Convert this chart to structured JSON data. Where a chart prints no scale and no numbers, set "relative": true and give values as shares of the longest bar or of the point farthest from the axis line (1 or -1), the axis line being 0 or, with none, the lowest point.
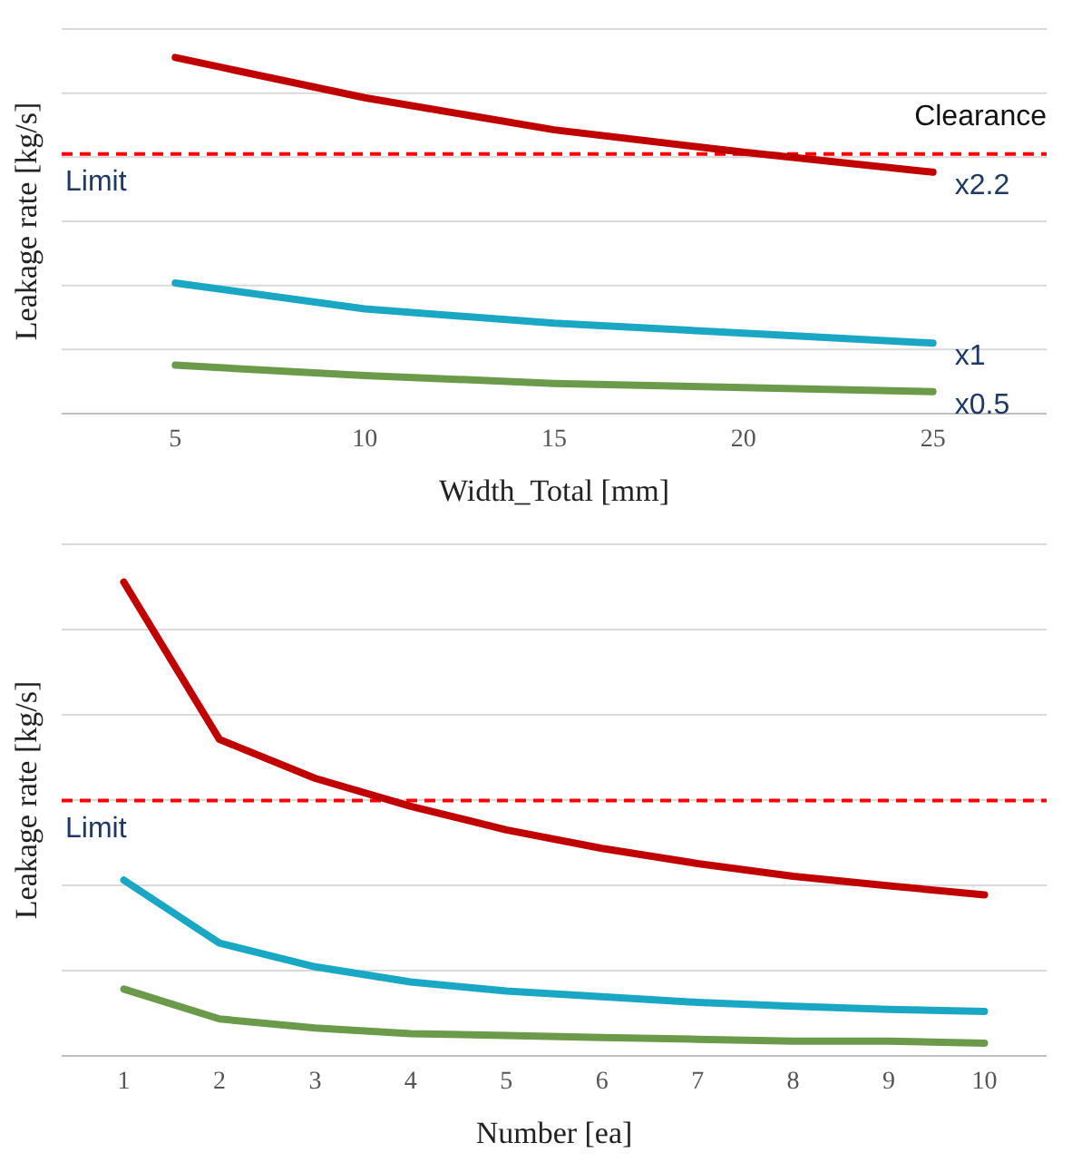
{
  "chart_data": [
    {
      "type": "line",
      "relative": true,
      "xlabel": "Width_Total [mm]",
      "ylabel": "Leakage rate [kg/s]",
      "x": [
        5,
        10,
        15,
        20,
        25
      ],
      "xlim": [
        2,
        28
      ],
      "xticks": [
        5,
        10,
        15,
        20,
        25
      ],
      "grid": "y",
      "marker": "none",
      "line_style": "solid",
      "tick_labels": "x",
      "series": [
        {
          "name": "x2.2",
          "color": "#c00000",
          "values": [
            1,
            0.887,
            0.797,
            0.734,
            0.678
          ]
        },
        {
          "name": "x1",
          "color": "#1aa7c4",
          "values": [
            0.367,
            0.294,
            0.254,
            0.226,
            0.198
          ]
        },
        {
          "name": "x0.5",
          "color": "#6a9a4a",
          "values": [
            0.136,
            0.107,
            0.085,
            0.073,
            0.062
          ]
        }
      ],
      "ref_lines": [
        {
          "axis": "y",
          "value": 0.729,
          "label": "Limit",
          "color": "#ff0000",
          "line_style": "dashed"
        }
      ],
      "annotations": [
        "Clearance"
      ]
    },
    {
      "type": "line",
      "relative": true,
      "xlabel": "Number [ea]",
      "ylabel": "Leakage rate [kg/s]",
      "x": [
        1,
        2,
        3,
        4,
        5,
        6,
        7,
        8,
        9,
        10
      ],
      "xlim": [
        0.35,
        10.65
      ],
      "xticks": [
        1,
        2,
        3,
        4,
        5,
        6,
        7,
        8,
        9,
        10
      ],
      "grid": "y",
      "marker": "none",
      "line_style": "solid",
      "tick_labels": "x",
      "series": [
        {
          "color": "#c00000",
          "values": [
            1,
            0.668,
            0.586,
            0.527,
            0.477,
            0.438,
            0.406,
            0.379,
            0.359,
            0.34
          ]
        },
        {
          "color": "#1aa7c4",
          "values": [
            0.371,
            0.238,
            0.188,
            0.156,
            0.137,
            0.125,
            0.113,
            0.105,
            0.098,
            0.094
          ]
        },
        {
          "color": "#6a9a4a",
          "values": [
            0.141,
            0.078,
            0.059,
            0.047,
            0.043,
            0.039,
            0.035,
            0.031,
            0.031,
            0.027
          ]
        }
      ],
      "ref_lines": [
        {
          "axis": "y",
          "value": 0.539,
          "label": "Limit",
          "color": "#ff0000",
          "line_style": "dashed"
        }
      ]
    }
  ]
}
